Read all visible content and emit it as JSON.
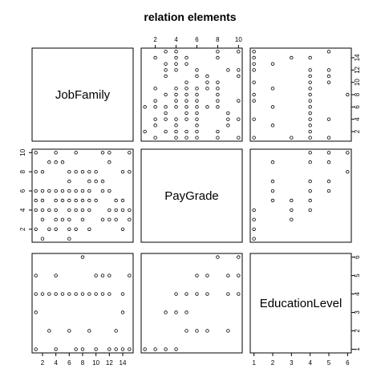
{
  "title": "relation  elements",
  "chart_data": {
    "type": "scatter",
    "title": "relation  elements",
    "variables": [
      {
        "name": "JobFamily",
        "range": [
          1,
          15
        ],
        "ticks": [
          2,
          4,
          6,
          8,
          10,
          12,
          14
        ]
      },
      {
        "name": "PayGrade",
        "range": [
          1,
          10
        ],
        "ticks": [
          2,
          4,
          6,
          8,
          10
        ]
      },
      {
        "name": "EducationLevel",
        "range": [
          1,
          6
        ],
        "ticks": [
          1,
          2,
          3,
          4,
          5,
          6
        ]
      }
    ],
    "pairs": {
      "JobFamily_PayGrade": [
        [
          1,
          2
        ],
        [
          1,
          4
        ],
        [
          1,
          5
        ],
        [
          1,
          6
        ],
        [
          1,
          8
        ],
        [
          1,
          10
        ],
        [
          2,
          1
        ],
        [
          2,
          3
        ],
        [
          2,
          4
        ],
        [
          2,
          5
        ],
        [
          2,
          6
        ],
        [
          2,
          8
        ],
        [
          3,
          2
        ],
        [
          3,
          4
        ],
        [
          3,
          6
        ],
        [
          3,
          9
        ],
        [
          4,
          2
        ],
        [
          4,
          3
        ],
        [
          4,
          4
        ],
        [
          4,
          5
        ],
        [
          4,
          6
        ],
        [
          4,
          9
        ],
        [
          4,
          10
        ],
        [
          5,
          3
        ],
        [
          5,
          5
        ],
        [
          5,
          6
        ],
        [
          5,
          9
        ],
        [
          6,
          1
        ],
        [
          6,
          2
        ],
        [
          6,
          3
        ],
        [
          6,
          4
        ],
        [
          6,
          5
        ],
        [
          6,
          6
        ],
        [
          6,
          7
        ],
        [
          6,
          8
        ],
        [
          7,
          2
        ],
        [
          7,
          4
        ],
        [
          7,
          5
        ],
        [
          7,
          6
        ],
        [
          7,
          8
        ],
        [
          7,
          10
        ],
        [
          8,
          3
        ],
        [
          8,
          4
        ],
        [
          8,
          5
        ],
        [
          8,
          6
        ],
        [
          8,
          8
        ],
        [
          9,
          2
        ],
        [
          9,
          4
        ],
        [
          9,
          5
        ],
        [
          9,
          6
        ],
        [
          9,
          7
        ],
        [
          9,
          8
        ],
        [
          10,
          5
        ],
        [
          10,
          7
        ],
        [
          10,
          8
        ],
        [
          11,
          3
        ],
        [
          11,
          6
        ],
        [
          11,
          7
        ],
        [
          11,
          10
        ],
        [
          12,
          3
        ],
        [
          12,
          4
        ],
        [
          12,
          6
        ],
        [
          12,
          9
        ],
        [
          12,
          10
        ],
        [
          13,
          3
        ],
        [
          13,
          4
        ],
        [
          13,
          5
        ],
        [
          14,
          2
        ],
        [
          14,
          4
        ],
        [
          14,
          5
        ],
        [
          14,
          8
        ],
        [
          15,
          3
        ],
        [
          15,
          4
        ],
        [
          15,
          8
        ],
        [
          15,
          10
        ]
      ],
      "JobFamily_EducationLevel": [
        [
          1,
          1
        ],
        [
          1,
          3
        ],
        [
          1,
          4
        ],
        [
          1,
          5
        ],
        [
          2,
          4
        ],
        [
          3,
          2
        ],
        [
          3,
          4
        ],
        [
          4,
          1
        ],
        [
          4,
          4
        ],
        [
          4,
          5
        ],
        [
          5,
          4
        ],
        [
          6,
          2
        ],
        [
          6,
          4
        ],
        [
          7,
          1
        ],
        [
          7,
          4
        ],
        [
          8,
          1
        ],
        [
          8,
          4
        ],
        [
          8,
          6
        ],
        [
          9,
          2
        ],
        [
          9,
          4
        ],
        [
          10,
          1
        ],
        [
          10,
          4
        ],
        [
          10,
          5
        ],
        [
          11,
          4
        ],
        [
          11,
          5
        ],
        [
          12,
          1
        ],
        [
          12,
          4
        ],
        [
          12,
          5
        ],
        [
          13,
          1
        ],
        [
          13,
          2
        ],
        [
          14,
          1
        ],
        [
          14,
          3
        ],
        [
          14,
          4
        ],
        [
          15,
          1
        ],
        [
          15,
          5
        ]
      ],
      "PayGrade_EducationLevel": [
        [
          1,
          1
        ],
        [
          2,
          1
        ],
        [
          3,
          1
        ],
        [
          4,
          1
        ],
        [
          3,
          3
        ],
        [
          4,
          3
        ],
        [
          5,
          3
        ],
        [
          4,
          4
        ],
        [
          5,
          4
        ],
        [
          6,
          4
        ],
        [
          7,
          4
        ],
        [
          5,
          2
        ],
        [
          6,
          2
        ],
        [
          7,
          2
        ],
        [
          9,
          2
        ],
        [
          6,
          5
        ],
        [
          7,
          5
        ],
        [
          9,
          5
        ],
        [
          8,
          6
        ],
        [
          10,
          6
        ],
        [
          9,
          4
        ],
        [
          10,
          4
        ],
        [
          10,
          5
        ]
      ]
    }
  }
}
